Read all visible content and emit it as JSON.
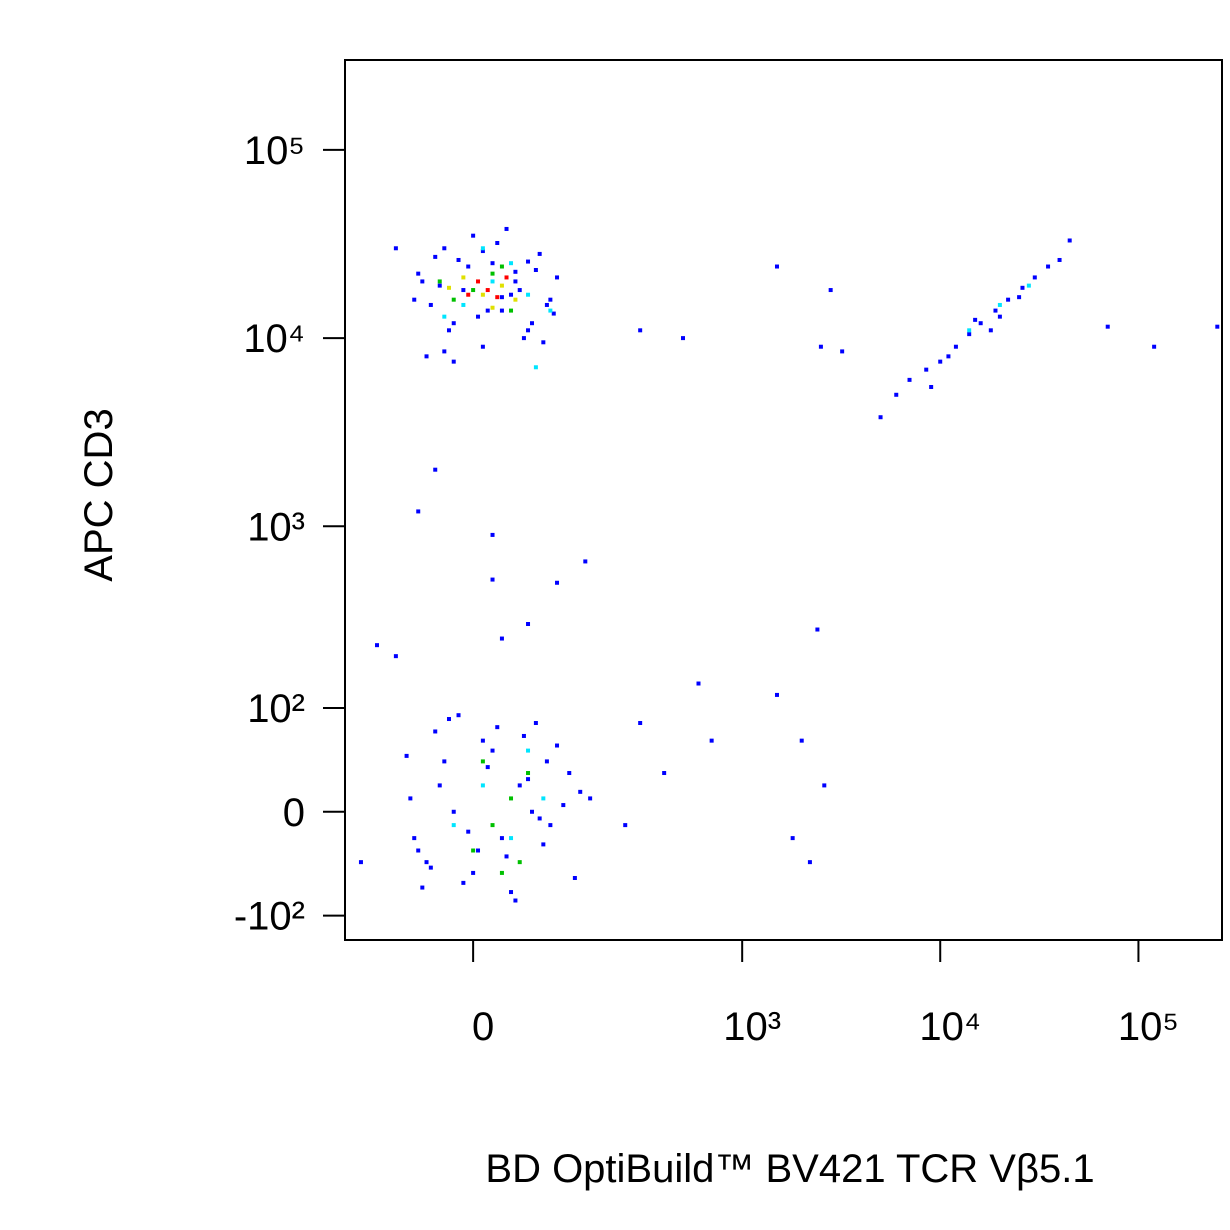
{
  "chart_data": {
    "type": "scatter",
    "xlabel": "BD OptiBuild™ BV421 TCR Vβ5.1",
    "ylabel": "APC CD3",
    "xscale": "asinh",
    "yscale": "asinh",
    "xlim": [
      -185,
      264000
    ],
    "ylim": [
      -140,
      300000
    ],
    "xticks": [
      0,
      {
        "value": 1000,
        "label": "10³"
      },
      {
        "value": 10000,
        "label": "10⁴"
      },
      {
        "value": 100000,
        "label": "10⁵"
      }
    ],
    "yticks": [
      {
        "value": -100,
        "label": "-10²"
      },
      0,
      {
        "value": 100,
        "label": "10²"
      },
      {
        "value": 1000,
        "label": "10³"
      },
      {
        "value": 10000,
        "label": "10⁴"
      },
      {
        "value": 100000,
        "label": "10⁵"
      }
    ],
    "series": [
      {
        "color": "#0000ff",
        "x": [
          -60,
          -45,
          -30,
          -20,
          -10,
          0,
          10,
          20,
          30,
          45,
          60,
          75,
          90,
          -50,
          -35,
          -15,
          5,
          25,
          40,
          55,
          70,
          85,
          100,
          -65,
          -40,
          -25,
          -5,
          15,
          35,
          50,
          65,
          80,
          -55,
          -20,
          10,
          30,
          60,
          95,
          -30,
          45,
          -90,
          300,
          500,
          1500,
          2800,
          2500,
          3200,
          -40,
          -60,
          20,
          100,
          150,
          20,
          -90,
          30,
          -70,
          -50,
          -30,
          -10,
          10,
          30,
          50,
          70,
          90,
          120,
          -60,
          -40,
          -20,
          0,
          20,
          40,
          60,
          80,
          110,
          140,
          -75,
          -45,
          -25,
          -5,
          15,
          35,
          55,
          75,
          100,
          130,
          -55,
          -35,
          -15,
          5,
          25,
          45,
          65,
          85,
          -65,
          160,
          250,
          400,
          300,
          600,
          700,
          1500,
          2400,
          2000,
          2600,
          1800,
          2200,
          -120,
          60,
          -150,
          6000,
          7000,
          8500,
          10000,
          12000,
          14000,
          16000,
          19000,
          22000,
          26000,
          30000,
          35000,
          40000,
          11000,
          15000,
          20000,
          25000,
          18000,
          45000,
          70000,
          120000,
          250000,
          5000,
          9000
        ],
        "y": [
          22000,
          15000,
          30000,
          12000,
          18000,
          35000,
          9000,
          25000,
          14000,
          20000,
          11000,
          28000,
          16000,
          8000,
          19000,
          26000,
          13000,
          32000,
          17000,
          10000,
          23000,
          15000,
          21000,
          16000,
          27000,
          11000,
          24000,
          14000,
          38000,
          18000,
          12000,
          9500,
          20000,
          7500,
          29000,
          16500,
          25500,
          13500,
          8500,
          22500,
          30000,
          11000,
          10000,
          24000,
          18000,
          9000,
          8500,
          2000,
          1200,
          900,
          500,
          650,
          520,
          200,
          250,
          10,
          -40,
          40,
          -60,
          60,
          -20,
          20,
          80,
          -10,
          30,
          -30,
          70,
          0,
          -50,
          50,
          -70,
          25,
          -25,
          5,
          15,
          45,
          -45,
          85,
          -15,
          35,
          -35,
          65,
          -5,
          55,
          -55,
          -65,
          20,
          90,
          -30,
          75,
          -80,
          0,
          40,
          -20,
          10,
          -10,
          30,
          80,
          140,
          60,
          120,
          280,
          60,
          20,
          -20,
          -40,
          230,
          300,
          -40,
          5000,
          6000,
          6800,
          7500,
          9000,
          10500,
          12000,
          14000,
          16000,
          18500,
          21000,
          24000,
          26000,
          8000,
          12500,
          13000,
          16500,
          11000,
          33000,
          11500,
          9000,
          11500,
          3800,
          5500
        ]
      },
      {
        "color": "#00e5ff",
        "x": [
          20,
          -10,
          40,
          60,
          -30,
          10,
          90,
          70,
          10,
          40,
          60,
          -20,
          80,
          14000,
          20000,
          28000
        ],
        "y": [
          20000,
          15000,
          25000,
          17000,
          13000,
          30000,
          14000,
          7000,
          20,
          -20,
          50,
          -10,
          10,
          11000,
          15000,
          19000
        ]
      },
      {
        "color": "#00c000",
        "x": [
          0,
          20,
          -20,
          40,
          30,
          -35,
          20,
          40,
          0,
          50,
          60,
          10,
          30
        ],
        "y": [
          18000,
          22000,
          16000,
          14000,
          24000,
          20000,
          -10,
          10,
          -30,
          -40,
          30,
          40,
          -50
        ]
      },
      {
        "color": "#e0e000",
        "x": [
          10,
          30,
          -10,
          45,
          20,
          -25
        ],
        "y": [
          17000,
          19000,
          21000,
          16000,
          14500,
          18500
        ]
      },
      {
        "color": "#ff0000",
        "x": [
          15,
          25,
          5,
          35,
          -5
        ],
        "y": [
          18000,
          16500,
          20000,
          21000,
          17000
        ]
      }
    ]
  }
}
